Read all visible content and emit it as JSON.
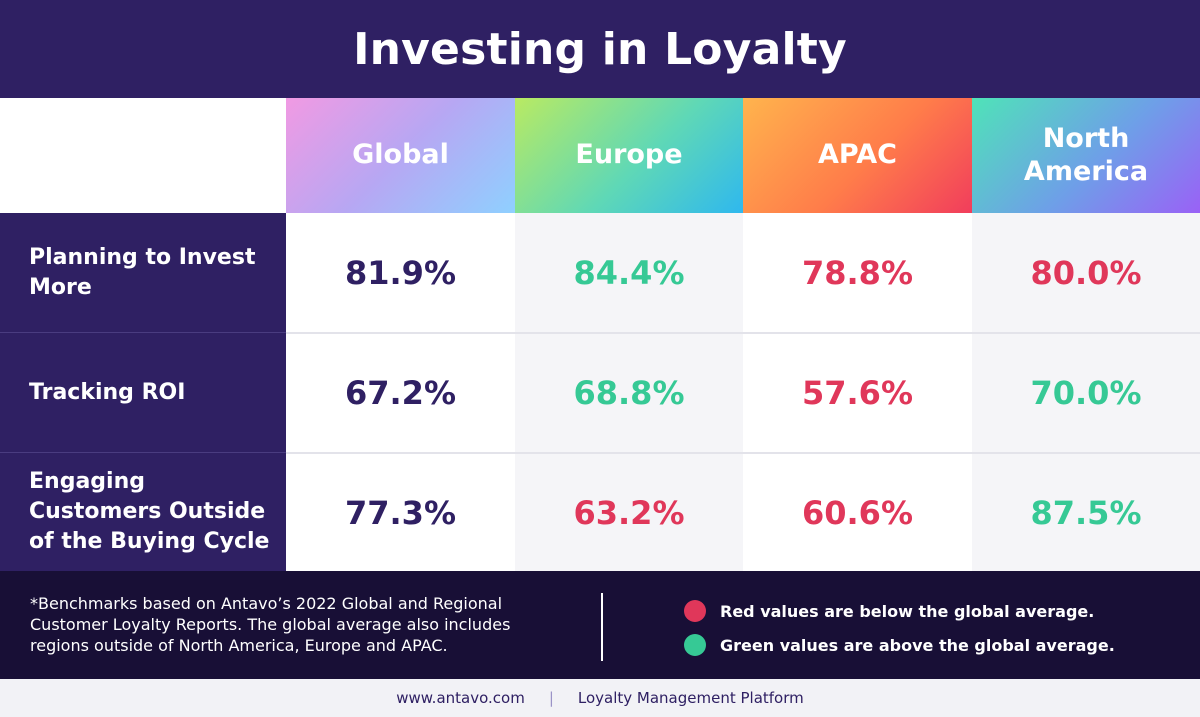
{
  "title": "Investing in Loyalty",
  "colors": {
    "header_bg": "#2f2063",
    "footer_bg": "#180f36",
    "neutral": "#2f2063",
    "below_average": "#e0375a",
    "above_average": "#36c995"
  },
  "chart_data": {
    "type": "table",
    "columns": [
      "Global",
      "Europe",
      "APAC",
      "North America"
    ],
    "rows": [
      {
        "label": "Planning to Invest More",
        "values": [
          "81.9%",
          "84.4%",
          "78.8%",
          "80.0%"
        ],
        "status": [
          "neutral",
          "above",
          "below",
          "below"
        ]
      },
      {
        "label": "Tracking ROI",
        "values": [
          "67.2%",
          "68.8%",
          "57.6%",
          "70.0%"
        ],
        "status": [
          "neutral",
          "above",
          "below",
          "above"
        ]
      },
      {
        "label": "Engaging Customers Outside of the Buying Cycle",
        "values": [
          "77.3%",
          "63.2%",
          "60.6%",
          "87.5%"
        ],
        "status": [
          "neutral",
          "below",
          "below",
          "above"
        ]
      }
    ]
  },
  "footnote": "*Benchmarks based on Antavo’s 2022 Global and Regional Customer Loyalty Reports. The global average also includes regions outside of North America, Europe and APAC.",
  "legend": {
    "red": "Red values are below the global average.",
    "green": "Green values are above the global average."
  },
  "bottom": {
    "website": "www.antavo.com",
    "separator": "|",
    "tagline": "Loyalty Management Platform"
  }
}
